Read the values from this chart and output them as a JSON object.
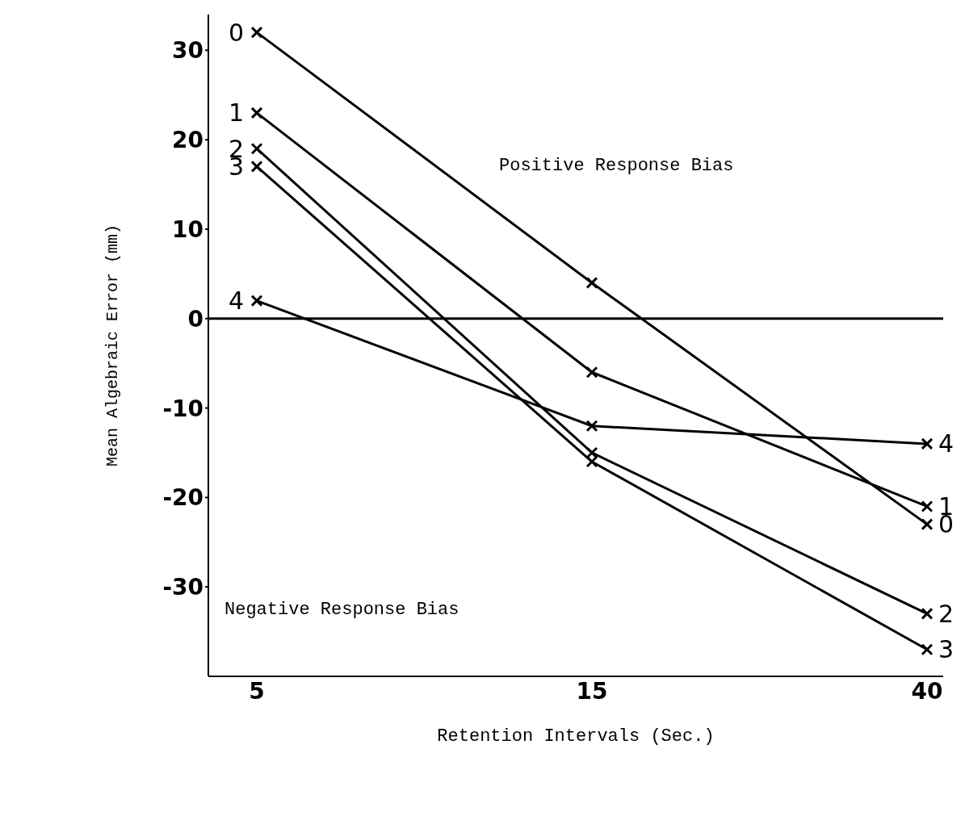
{
  "chart_data": {
    "type": "line",
    "xlabel": "Retention Intervals (Sec.)",
    "ylabel": "Mean Algebraic Error (mm)",
    "categories": [
      "5",
      "15",
      "40"
    ],
    "series": [
      {
        "name": "0",
        "color": "#000000",
        "values": [
          32,
          4,
          -23
        ]
      },
      {
        "name": "1",
        "color": "#000000",
        "values": [
          23,
          -6,
          -21
        ]
      },
      {
        "name": "2",
        "color": "#000000",
        "values": [
          19,
          -15,
          -33
        ]
      },
      {
        "name": "3",
        "color": "#000000",
        "values": [
          17,
          -16,
          -37
        ]
      },
      {
        "name": "4",
        "color": "#000000",
        "values": [
          2,
          -12,
          -14
        ]
      }
    ],
    "ylim": [
      -40,
      34
    ],
    "yticks": [
      -30,
      -20,
      -10,
      0,
      10,
      20,
      30
    ],
    "ref_lines": [
      {
        "axis": "y",
        "value": 0,
        "color": "#000000"
      }
    ],
    "annotations": [
      "Positive Response Bias",
      "Negative Response Bias"
    ],
    "grid": false,
    "legend": false,
    "marker": "cross",
    "line_style": "solid"
  }
}
